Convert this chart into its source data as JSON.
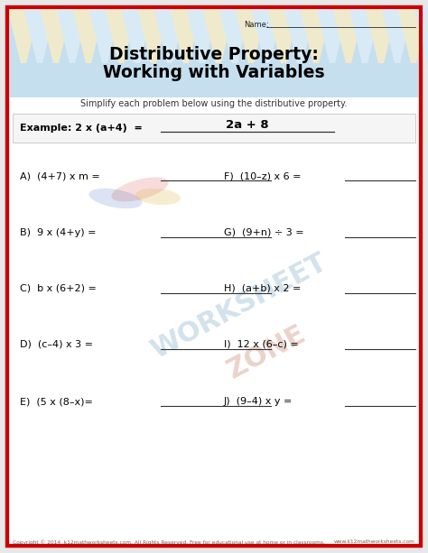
{
  "title_line1": "Distributive Property:",
  "title_line2": "Working with Variables",
  "subtitle": "Simplify each problem below using the distributive property.",
  "name_label": "Name:",
  "example_label": "Example: 2 x (a+4)  =",
  "example_answer": "2a + 8",
  "problems_left": [
    "A)  (4+7) x m =",
    "B)  9 x (4+y) =",
    "C)  b x (6+2) =",
    "D)  (c–4) x 3 =",
    "E)  (5 x (8–x)="
  ],
  "problems_right": [
    "F)  (10–z) x 6 =",
    "G)  (9+n) ÷ 3 =",
    "H)  (a+b) x 2 =",
    "I)  12 x (6–c) =",
    "J)  (9–4) x y ="
  ],
  "footer_left": "Copyright © 2014  k12mathworksheets.com. All Rights Reserved. Free for educational use at home or in classrooms.",
  "footer_right": "www.k12mathworksheets.com",
  "bg_color": "#ffffff",
  "header_bg": "#c5dfee",
  "border_color": "#cc0000",
  "triangle_cream": "#f0eacc",
  "triangle_light": "#d8eaf5",
  "watermark_blue": "#a0c8e0",
  "watermark_orange": "#e8a070"
}
